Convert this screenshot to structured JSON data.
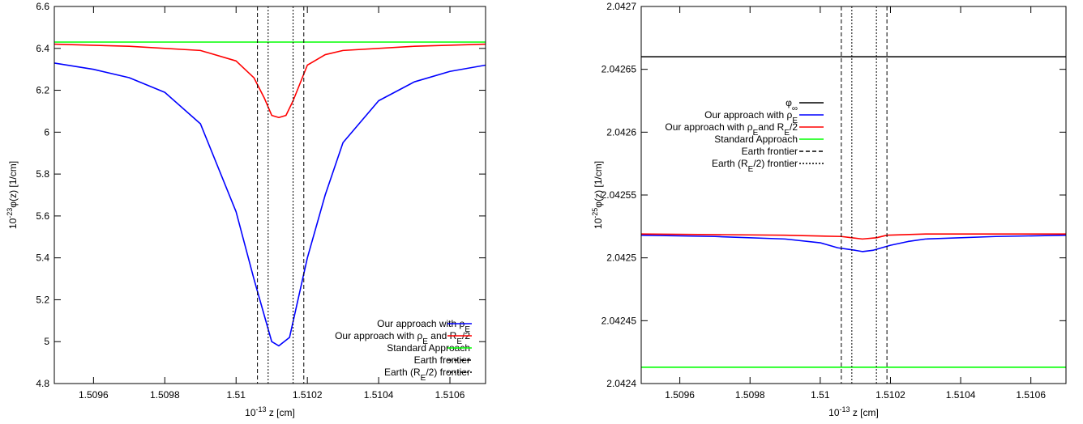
{
  "chart_data": [
    {
      "type": "line",
      "xlabel": {
        "prefix": "10",
        "exp": "-13",
        "rest": " z [cm]"
      },
      "ylabel": {
        "prefix": "10",
        "exp": "-23",
        "rest": "φ(z) [1/cm]"
      },
      "xlim": [
        1.50949,
        1.5107
      ],
      "ylim": [
        4.8,
        6.6
      ],
      "xticks": [
        "1.5096",
        "1.5098",
        "1.51",
        "1.5102",
        "1.5104",
        "1.5106"
      ],
      "xtick_values": [
        1.5096,
        1.5098,
        1.51,
        1.5102,
        1.5104,
        1.5106
      ],
      "yticks": [
        "4.8",
        "5",
        "5.2",
        "5.4",
        "5.6",
        "5.8",
        "6",
        "6.2",
        "6.4",
        "6.6"
      ],
      "ytick_values": [
        4.8,
        5.0,
        5.2,
        5.4,
        5.6,
        5.8,
        6.0,
        6.2,
        6.4,
        6.6
      ],
      "grid": false,
      "legend_position": "bottom-right",
      "series": [
        {
          "name": "Our approach with ρE",
          "name_parts": [
            "Our approach with ρ",
            "E",
            ""
          ],
          "color": "#0000ff",
          "dash": "solid",
          "x": [
            1.50949,
            1.5096,
            1.5097,
            1.5098,
            1.5099,
            1.51,
            1.51005,
            1.5101,
            1.51012,
            1.51015,
            1.5102,
            1.51025,
            1.5103,
            1.5104,
            1.5105,
            1.5106,
            1.5107
          ],
          "y": [
            6.33,
            6.3,
            6.26,
            6.19,
            6.04,
            5.62,
            5.3,
            5.0,
            4.98,
            5.02,
            5.4,
            5.7,
            5.95,
            6.15,
            6.24,
            6.29,
            6.32
          ]
        },
        {
          "name": "Our approach with ρE and RE/2",
          "name_parts": [
            "Our approach with ρ",
            "E",
            " and R",
            "E",
            "/2"
          ],
          "color": "#ff0000",
          "dash": "solid",
          "x": [
            1.50949,
            1.5097,
            1.5099,
            1.51,
            1.51005,
            1.51008,
            1.5101,
            1.51012,
            1.51014,
            1.51016,
            1.5102,
            1.51025,
            1.5103,
            1.5105,
            1.5107
          ],
          "y": [
            6.42,
            6.41,
            6.39,
            6.34,
            6.26,
            6.16,
            6.08,
            6.07,
            6.08,
            6.15,
            6.32,
            6.37,
            6.39,
            6.41,
            6.42
          ]
        },
        {
          "name": "Standard Approach",
          "name_parts": [
            "Standard Approach"
          ],
          "color": "#00ff00",
          "dash": "solid",
          "x": [
            1.50949,
            1.5107
          ],
          "y": [
            6.43,
            6.43
          ]
        },
        {
          "name": "Earth frontier",
          "name_parts": [
            "Earth frontier"
          ],
          "color": "#000000",
          "dash": "dashed",
          "vlines": [
            1.51006,
            1.51019
          ]
        },
        {
          "name": "Earth (RE/2) frontier",
          "name_parts": [
            "Earth (R",
            "E",
            "/2) frontier"
          ],
          "color": "#000000",
          "dash": "dotted",
          "vlines": [
            1.51009,
            1.51016
          ]
        }
      ]
    },
    {
      "type": "line",
      "xlabel": {
        "prefix": "10",
        "exp": "-13",
        "rest": " z [cm]"
      },
      "ylabel": {
        "prefix": "10",
        "exp": "-25",
        "rest": "φ(z) [1/cm]"
      },
      "xlim": [
        1.50949,
        1.5107
      ],
      "ylim": [
        2.0424,
        2.0427
      ],
      "xticks": [
        "1.5096",
        "1.5098",
        "1.51",
        "1.5102",
        "1.5104",
        "1.5106"
      ],
      "xtick_values": [
        1.5096,
        1.5098,
        1.51,
        1.5102,
        1.5104,
        1.5106
      ],
      "yticks": [
        "2.0424",
        "2.04245",
        "2.0425",
        "2.04255",
        "2.0426",
        "2.04265",
        "2.0427"
      ],
      "ytick_values": [
        2.0424,
        2.04245,
        2.0425,
        2.04255,
        2.0426,
        2.04265,
        2.0427
      ],
      "grid": false,
      "legend_position": "top-left",
      "series": [
        {
          "name": "φ∞",
          "name_parts": [
            "φ",
            "∞",
            ""
          ],
          "color": "#000000",
          "dash": "solid",
          "x": [
            1.50949,
            1.5107
          ],
          "y": [
            2.04266,
            2.04266
          ]
        },
        {
          "name": "Our approach with ρE",
          "name_parts": [
            "Our approach with ρ",
            "E",
            ""
          ],
          "color": "#0000ff",
          "dash": "solid",
          "x": [
            1.50949,
            1.5097,
            1.5099,
            1.51,
            1.51005,
            1.5101,
            1.51012,
            1.51015,
            1.5102,
            1.51025,
            1.5103,
            1.5105,
            1.5107
          ],
          "y": [
            2.042518,
            2.042517,
            2.042515,
            2.042512,
            2.042508,
            2.042506,
            2.042505,
            2.042506,
            2.04251,
            2.042513,
            2.042515,
            2.042517,
            2.042518
          ]
        },
        {
          "name": "Our approach with ρE and RE/2",
          "name_parts": [
            "Our approach with ρ",
            "E",
            "and R",
            "E",
            "/2"
          ],
          "color": "#ff0000",
          "dash": "solid",
          "x": [
            1.50949,
            1.5099,
            1.51006,
            1.51009,
            1.51012,
            1.51016,
            1.51019,
            1.5103,
            1.5107
          ],
          "y": [
            2.042519,
            2.042518,
            2.042517,
            2.042516,
            2.042515,
            2.042516,
            2.042518,
            2.042519,
            2.042519
          ]
        },
        {
          "name": "Standard Approach",
          "name_parts": [
            "Standard Approach"
          ],
          "color": "#00ff00",
          "dash": "solid",
          "x": [
            1.50949,
            1.5107
          ],
          "y": [
            2.042413,
            2.042413
          ]
        },
        {
          "name": "Earth frontier",
          "name_parts": [
            "Earth frontier"
          ],
          "color": "#000000",
          "dash": "dashed",
          "vlines": [
            1.51006,
            1.51019
          ]
        },
        {
          "name": "Earth (RE/2) frontier",
          "name_parts": [
            "Earth (R",
            "E",
            "/2) frontier"
          ],
          "color": "#000000",
          "dash": "dotted",
          "vlines": [
            1.51009,
            1.51016
          ]
        }
      ]
    }
  ]
}
